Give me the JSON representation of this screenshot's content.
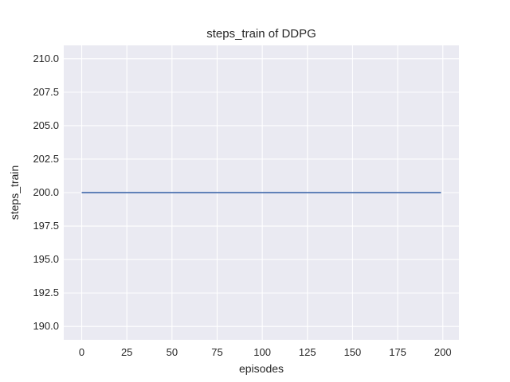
{
  "figure": {
    "background": "#ffffff",
    "text_color": "#262626"
  },
  "chart_data": {
    "type": "line",
    "title": "steps_train of DDPG",
    "xlabel": "episodes",
    "ylabel": "steps_train",
    "x_tick_labels": [
      "0",
      "25",
      "50",
      "75",
      "100",
      "125",
      "150",
      "175",
      "200"
    ],
    "y_tick_labels": [
      "210.0",
      "207.5",
      "205.0",
      "202.5",
      "200.0",
      "197.5",
      "195.0",
      "192.5",
      "190.0"
    ],
    "xlim": [
      -9.95,
      208.95
    ],
    "ylim": [
      189.0,
      211.0
    ],
    "grid": true,
    "grid_color": "#ffffff",
    "plot_background": "#eaeaf2",
    "legend": false,
    "series": [
      {
        "name": "steps_train",
        "color": "#4c72b0",
        "description": "constant 200 steps for every training episode from 0 to 199",
        "x": [
          0,
          199
        ],
        "y": [
          200,
          200
        ]
      }
    ]
  }
}
